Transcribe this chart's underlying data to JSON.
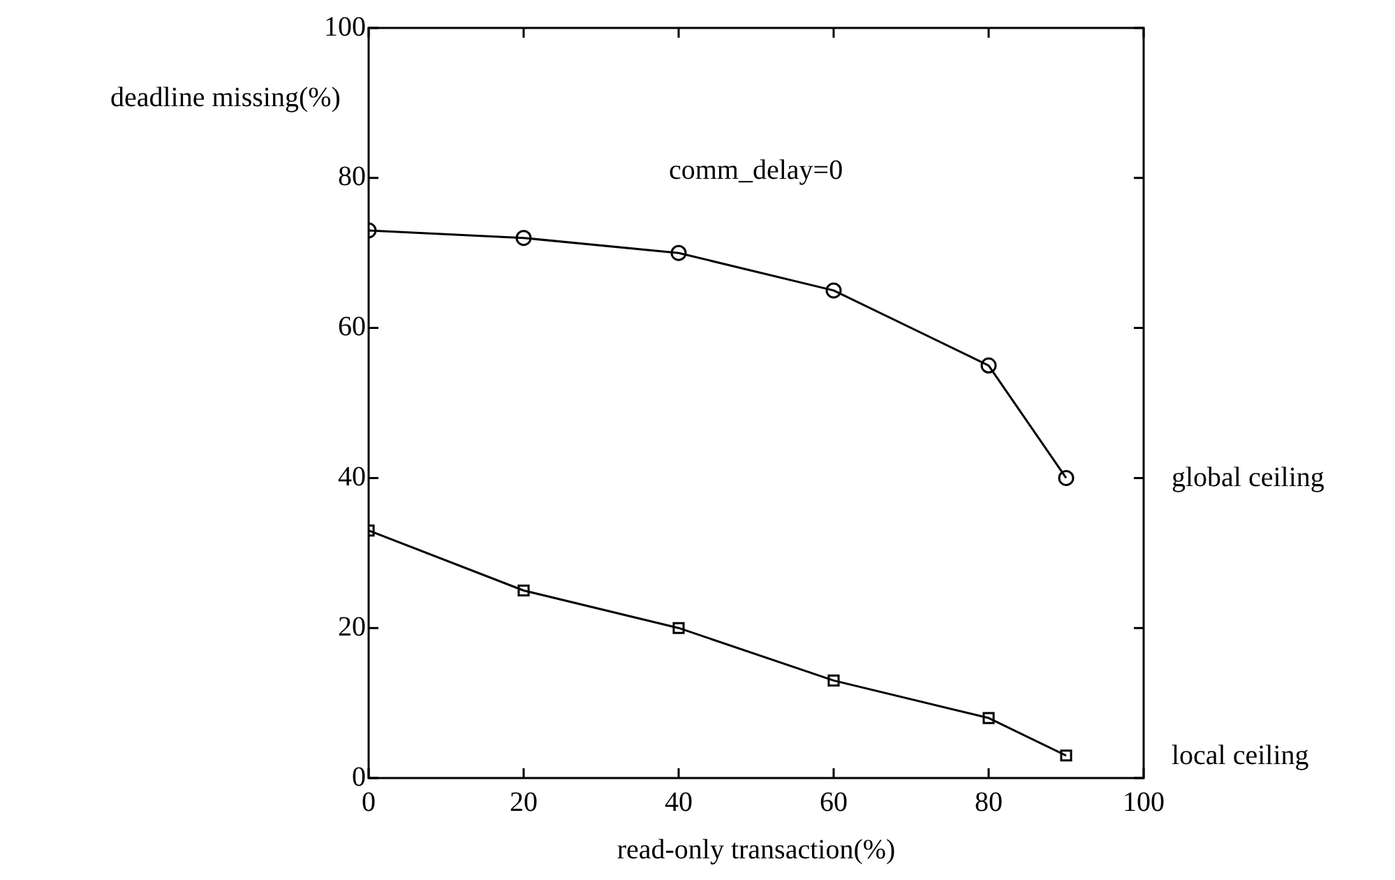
{
  "chart_data": {
    "type": "line",
    "ylabel": "deadline missing(%)",
    "xlabel": "read-only transaction(%)",
    "annotations": [
      "comm_delay=0"
    ],
    "x": [
      0,
      20,
      40,
      60,
      80,
      90
    ],
    "series": [
      {
        "name": "global ceiling",
        "color": "#000000",
        "marker": "circle",
        "values": [
          73,
          72,
          70,
          65,
          55,
          40
        ]
      },
      {
        "name": "local ceiling",
        "color": "#000000",
        "marker": "square",
        "values": [
          33,
          25,
          20,
          13,
          8,
          3
        ]
      }
    ],
    "xlim": [
      0,
      100
    ],
    "xticks": [
      0,
      20,
      40,
      60,
      80,
      100
    ],
    "ylim": [
      0,
      100
    ],
    "yticks": [
      0,
      20,
      40,
      60,
      80,
      100
    ],
    "grid": false,
    "legend": "right",
    "line_style": "solid"
  }
}
